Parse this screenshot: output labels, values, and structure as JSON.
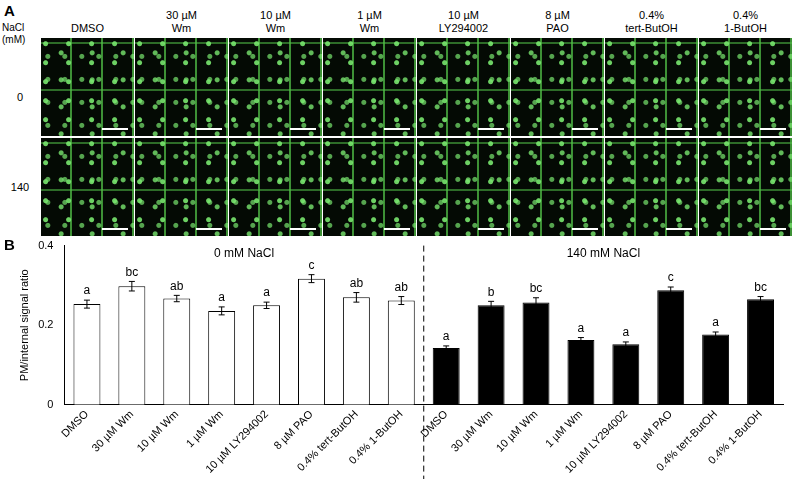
{
  "panel_a": {
    "label": "A",
    "row_title": [
      "NaCl",
      "(mM)"
    ],
    "columns": [
      [
        "DMSO"
      ],
      [
        "30 µM",
        "Wm"
      ],
      [
        "10 µM",
        "Wm"
      ],
      [
        "1 µM",
        "Wm"
      ],
      [
        "10 µM",
        "LY294002"
      ],
      [
        "8 µM",
        "PAO"
      ],
      [
        "0.4%",
        "tert-ButOH"
      ],
      [
        "0.4%",
        "1-ButOH"
      ]
    ],
    "rows": [
      "0",
      "140"
    ]
  },
  "chart_data": {
    "type": "bar",
    "panel_label": "B",
    "y_label": "PM/internal signal ratio",
    "ylim": [
      0,
      0.4
    ],
    "yticks": [
      0,
      0.2,
      0.4
    ],
    "grid": false,
    "groups": [
      {
        "title": "0 mM NaCl",
        "color": "#ffffff",
        "categories": [
          "DMSO",
          "30 µM Wm",
          "10 µM Wm",
          "1 µM Wm",
          "10 µM LY294002",
          "8 µM PAO",
          "0.4% tert-ButOH",
          "0.4% 1-ButOH"
        ],
        "values": [
          0.253,
          0.298,
          0.267,
          0.236,
          0.25,
          0.317,
          0.27,
          0.262
        ],
        "errors": [
          0.01,
          0.012,
          0.008,
          0.01,
          0.008,
          0.01,
          0.012,
          0.01
        ],
        "letters": [
          "a",
          "bc",
          "ab",
          "a",
          "a",
          "c",
          "ab",
          "ab"
        ]
      },
      {
        "title": "140 mM NaCl",
        "color": "#000000",
        "categories": [
          "DMSO",
          "30 µM Wm",
          "10 µM Wm",
          "1 µM Wm",
          "10 µM LY294002",
          "8 µM PAO",
          "0.4% tert-ButOH",
          "0.4% 1-ButOH"
        ],
        "values": [
          0.143,
          0.25,
          0.257,
          0.163,
          0.152,
          0.288,
          0.177,
          0.265
        ],
        "errors": [
          0.005,
          0.01,
          0.012,
          0.006,
          0.006,
          0.008,
          0.006,
          0.007
        ],
        "letters": [
          "a",
          "b",
          "bc",
          "a",
          "a",
          "c",
          "a",
          "bc"
        ]
      }
    ]
  }
}
